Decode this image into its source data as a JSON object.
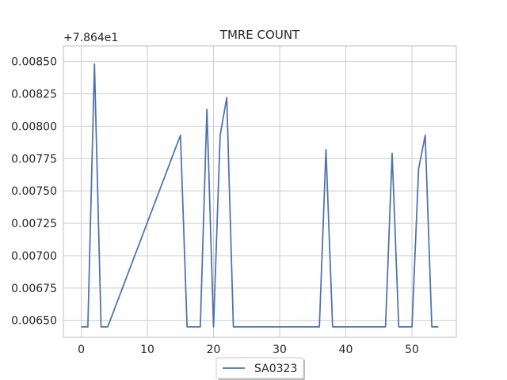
{
  "chart_data": {
    "type": "line",
    "title": "TMRE COUNT",
    "xlabel": "",
    "ylabel": "",
    "y_offset_label": "+7.864e1",
    "xlim": [
      -2.7,
      56.7
    ],
    "ylim": [
      0.00637,
      0.00862
    ],
    "x_ticks": [
      0,
      10,
      20,
      30,
      40,
      50
    ],
    "y_ticks": [
      0.0065,
      0.00675,
      0.007,
      0.00725,
      0.0075,
      0.00775,
      0.008,
      0.00825,
      0.0085
    ],
    "y_tick_labels": [
      "0.00650",
      "0.00675",
      "0.00700",
      "0.00725",
      "0.00750",
      "0.00775",
      "0.00800",
      "0.00825",
      "0.00850"
    ],
    "grid": true,
    "legend_position": "bottom-center",
    "colors": {
      "series": "#4c72b0",
      "grid": "#cccccc",
      "axes": "#cccccc"
    },
    "series": [
      {
        "name": "SA0323",
        "x": [
          0,
          1,
          2,
          3,
          4,
          15,
          16,
          17,
          18,
          19,
          20,
          21,
          22,
          23,
          36,
          37,
          38,
          46,
          47,
          48,
          50,
          51,
          52,
          53,
          54
        ],
        "y": [
          0.00645,
          0.00645,
          0.00848,
          0.00645,
          0.00645,
          0.00793,
          0.00645,
          0.00645,
          0.00645,
          0.00813,
          0.00645,
          0.00793,
          0.00822,
          0.00645,
          0.00645,
          0.00782,
          0.00645,
          0.00645,
          0.00779,
          0.00645,
          0.00645,
          0.00767,
          0.00793,
          0.00645,
          0.00645
        ]
      }
    ]
  }
}
